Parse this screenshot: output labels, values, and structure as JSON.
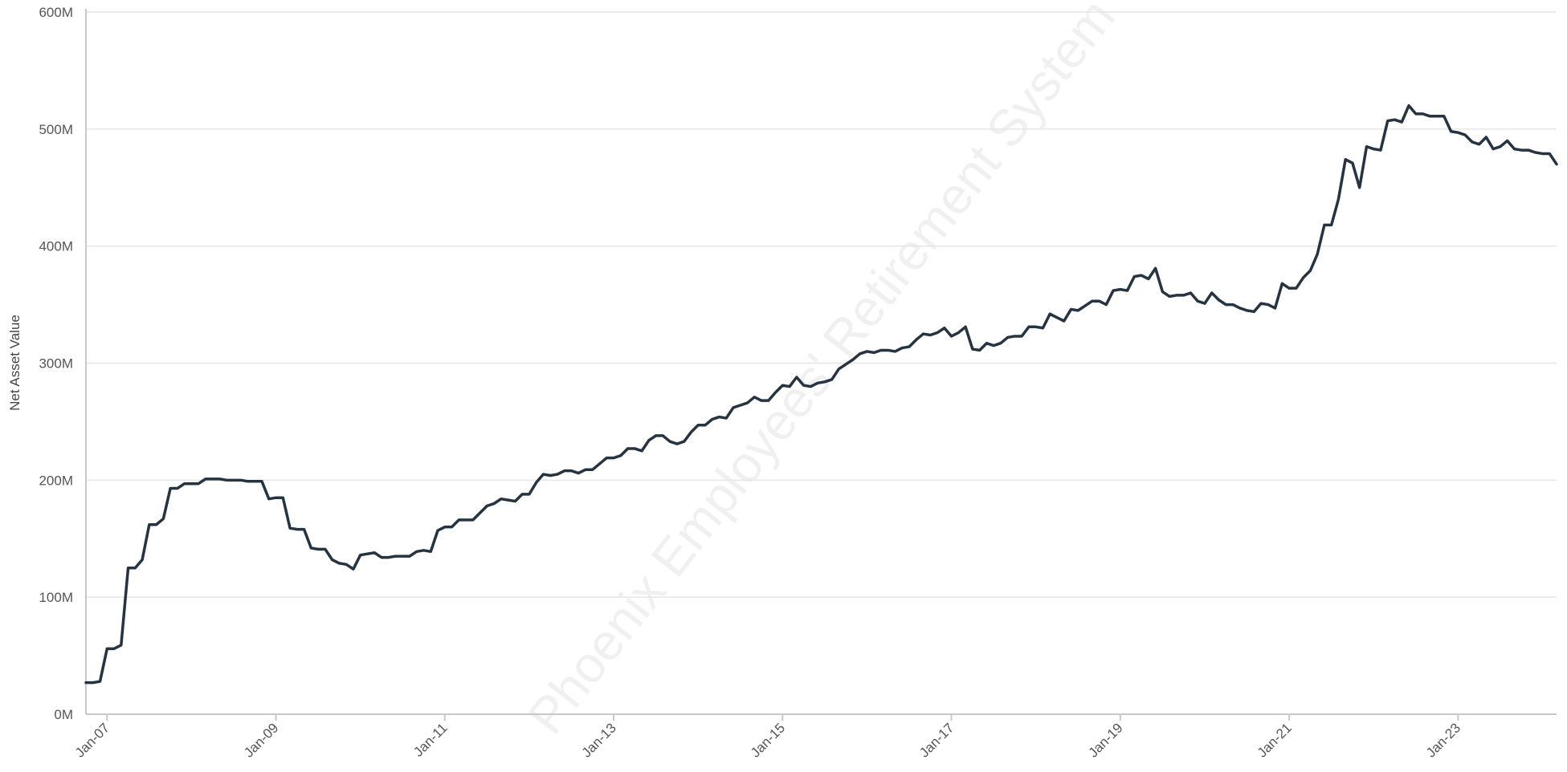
{
  "chart_data": {
    "type": "line",
    "watermark": "Phoenix Employees' Retirement System",
    "y_label": "Net Asset Value",
    "xlim": [
      "2006-10",
      "2024-03"
    ],
    "xticks": [
      {
        "value": "2007-01",
        "label": "Jan-07"
      },
      {
        "value": "2009-01",
        "label": "Jan-09"
      },
      {
        "value": "2011-01",
        "label": "Jan-11"
      },
      {
        "value": "2013-01",
        "label": "Jan-13"
      },
      {
        "value": "2015-01",
        "label": "Jan-15"
      },
      {
        "value": "2017-01",
        "label": "Jan-17"
      },
      {
        "value": "2019-01",
        "label": "Jan-19"
      },
      {
        "value": "2021-01",
        "label": "Jan-21"
      },
      {
        "value": "2023-01",
        "label": "Jan-23"
      }
    ],
    "ylim": [
      0,
      600
    ],
    "yticks": [
      {
        "value": 0,
        "label": "0M"
      },
      {
        "value": 100,
        "label": "100M"
      },
      {
        "value": 200,
        "label": "200M"
      },
      {
        "value": 300,
        "label": "300M"
      },
      {
        "value": 400,
        "label": "400M"
      },
      {
        "value": 500,
        "label": "500M"
      },
      {
        "value": 600,
        "label": "600M"
      }
    ],
    "grid": true,
    "x": [
      "2006-10",
      "2006-11",
      "2006-12",
      "2007-01",
      "2007-02",
      "2007-03",
      "2007-04",
      "2007-05",
      "2007-06",
      "2007-07",
      "2007-08",
      "2007-09",
      "2007-10",
      "2007-11",
      "2007-12",
      "2008-01",
      "2008-02",
      "2008-03",
      "2008-04",
      "2008-05",
      "2008-06",
      "2008-07",
      "2008-08",
      "2008-09",
      "2008-10",
      "2008-11",
      "2008-12",
      "2009-01",
      "2009-02",
      "2009-03",
      "2009-04",
      "2009-05",
      "2009-06",
      "2009-07",
      "2009-08",
      "2009-09",
      "2009-10",
      "2009-11",
      "2009-12",
      "2010-01",
      "2010-02",
      "2010-03",
      "2010-04",
      "2010-05",
      "2010-06",
      "2010-07",
      "2010-08",
      "2010-09",
      "2010-10",
      "2010-11",
      "2010-12",
      "2011-01",
      "2011-02",
      "2011-03",
      "2011-04",
      "2011-05",
      "2011-06",
      "2011-07",
      "2011-08",
      "2011-09",
      "2011-10",
      "2011-11",
      "2011-12",
      "2012-01",
      "2012-02",
      "2012-03",
      "2012-04",
      "2012-05",
      "2012-06",
      "2012-07",
      "2012-08",
      "2012-09",
      "2012-10",
      "2012-11",
      "2012-12",
      "2013-01",
      "2013-02",
      "2013-03",
      "2013-04",
      "2013-05",
      "2013-06",
      "2013-07",
      "2013-08",
      "2013-09",
      "2013-10",
      "2013-11",
      "2013-12",
      "2014-01",
      "2014-02",
      "2014-03",
      "2014-04",
      "2014-05",
      "2014-06",
      "2014-07",
      "2014-08",
      "2014-09",
      "2014-10",
      "2014-11",
      "2014-12",
      "2015-01",
      "2015-02",
      "2015-03",
      "2015-04",
      "2015-05",
      "2015-06",
      "2015-07",
      "2015-08",
      "2015-09",
      "2015-10",
      "2015-11",
      "2015-12",
      "2016-01",
      "2016-02",
      "2016-03",
      "2016-04",
      "2016-05",
      "2016-06",
      "2016-07",
      "2016-08",
      "2016-09",
      "2016-10",
      "2016-11",
      "2016-12",
      "2017-01",
      "2017-02",
      "2017-03",
      "2017-04",
      "2017-05",
      "2017-06",
      "2017-07",
      "2017-08",
      "2017-09",
      "2017-10",
      "2017-11",
      "2017-12",
      "2018-01",
      "2018-02",
      "2018-03",
      "2018-04",
      "2018-05",
      "2018-06",
      "2018-07",
      "2018-08",
      "2018-09",
      "2018-10",
      "2018-11",
      "2018-12",
      "2019-01",
      "2019-02",
      "2019-03",
      "2019-04",
      "2019-05",
      "2019-06",
      "2019-07",
      "2019-08",
      "2019-09",
      "2019-10",
      "2019-11",
      "2019-12",
      "2020-01",
      "2020-02",
      "2020-03",
      "2020-04",
      "2020-05",
      "2020-06",
      "2020-07",
      "2020-08",
      "2020-09",
      "2020-10",
      "2020-11",
      "2020-12",
      "2021-01",
      "2021-02",
      "2021-03",
      "2021-04",
      "2021-05",
      "2021-06",
      "2021-07",
      "2021-08",
      "2021-09",
      "2021-10",
      "2021-11",
      "2021-12",
      "2022-01",
      "2022-02",
      "2022-03",
      "2022-04",
      "2022-05",
      "2022-06",
      "2022-07",
      "2022-08",
      "2022-09",
      "2022-10",
      "2022-11",
      "2022-12",
      "2023-01",
      "2023-02",
      "2023-03",
      "2023-04",
      "2023-05",
      "2023-06",
      "2023-07",
      "2023-08",
      "2023-09",
      "2023-10",
      "2023-11",
      "2023-12",
      "2024-01",
      "2024-02",
      "2024-03"
    ],
    "series": [
      {
        "name": "Net Asset Value",
        "color": "#263340",
        "values": [
          27,
          27,
          28,
          56,
          56,
          59,
          125,
          125,
          132,
          162,
          162,
          167,
          193,
          193,
          197,
          197,
          197,
          201,
          201,
          201,
          200,
          200,
          200,
          199,
          199,
          199,
          184,
          185,
          185,
          159,
          158,
          158,
          142,
          141,
          141,
          132,
          129,
          128,
          124,
          136,
          137,
          138,
          134,
          134,
          135,
          135,
          135,
          139,
          140,
          139,
          157,
          160,
          160,
          166,
          166,
          166,
          172,
          178,
          180,
          184,
          183,
          182,
          188,
          188,
          198,
          205,
          204,
          205,
          208,
          208,
          206,
          209,
          209,
          214,
          219,
          219,
          221,
          227,
          227,
          225,
          234,
          238,
          238,
          233,
          231,
          233,
          241,
          247,
          247,
          252,
          254,
          253,
          262,
          264,
          266,
          271,
          268,
          268,
          275,
          281,
          280,
          288,
          281,
          280,
          283,
          284,
          286,
          295,
          299,
          303,
          308,
          310,
          309,
          311,
          311,
          310,
          313,
          314,
          320,
          325,
          324,
          326,
          330,
          323,
          326,
          331,
          312,
          311,
          317,
          315,
          317,
          322,
          323,
          323,
          331,
          331,
          330,
          342,
          339,
          336,
          346,
          345,
          349,
          353,
          353,
          350,
          362,
          363,
          362,
          374,
          375,
          372,
          381,
          361,
          357,
          358,
          358,
          360,
          353,
          351,
          360,
          354,
          350,
          350,
          347,
          345,
          344,
          351,
          350,
          347,
          368,
          364,
          364,
          373,
          379,
          393,
          418,
          418,
          440,
          474,
          471,
          450,
          485,
          483,
          482,
          507,
          508,
          506,
          520,
          513,
          513,
          511,
          511,
          511,
          498,
          497,
          495,
          489,
          487,
          493,
          483,
          485,
          490,
          483,
          482,
          482,
          480,
          479,
          479,
          470
        ]
      }
    ]
  }
}
